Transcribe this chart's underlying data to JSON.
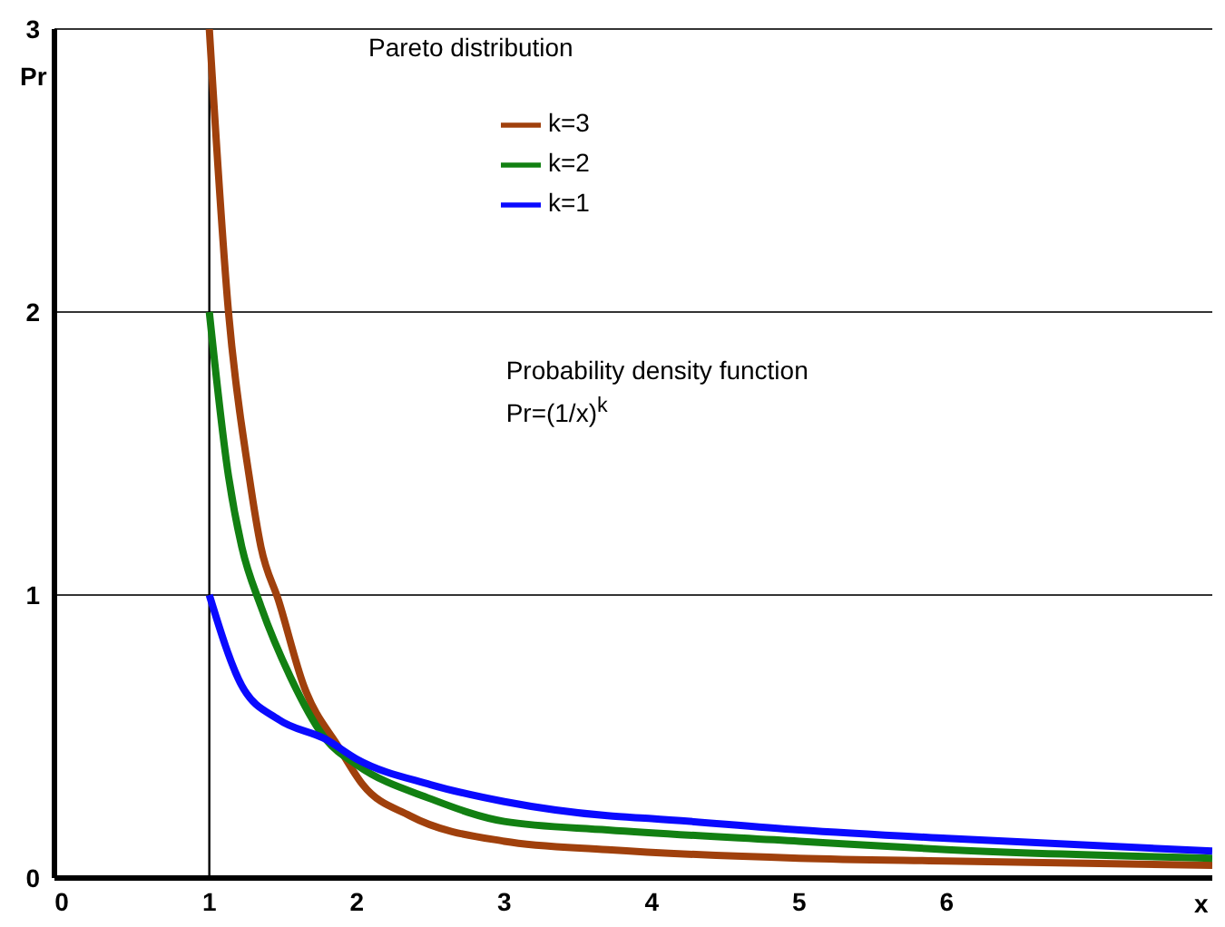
{
  "chart_data": {
    "type": "line",
    "title": "Pareto distribution",
    "xlabel": "x",
    "ylabel": "Pr",
    "annotations": [
      "Probability density function",
      "Pr=(1/x)$^{k}$"
    ],
    "xlim": [
      -0.05,
      7.8
    ],
    "xticks": [
      0,
      1,
      2,
      3,
      4,
      5,
      6
    ],
    "ylim": [
      0,
      3
    ],
    "yticks": [
      0,
      1,
      2,
      3
    ],
    "grid": "y",
    "legend": "top",
    "marker": "none",
    "line_style": "solid",
    "ref_lines": [
      {
        "axis": "x",
        "value": 1,
        "color": "#000000"
      }
    ],
    "series": [
      {
        "name": "k=3",
        "color": "#a0400c",
        "x": [
          1,
          1.13,
          1.27,
          1.35,
          1.47,
          1.64,
          1.88,
          2.04,
          2.36,
          3,
          3.7,
          5,
          6,
          7.8
        ],
        "values": [
          3,
          2,
          1.42,
          1.17,
          0.98,
          0.68,
          0.46,
          0.33,
          0.22,
          0.13,
          0.1,
          0.07,
          0.06,
          0.045
        ]
      },
      {
        "name": "k=2",
        "color": "#128012",
        "x": [
          1,
          1.13,
          1.22,
          1.35,
          1.55,
          1.79,
          2,
          2.5,
          3,
          3.7,
          5,
          6,
          7.8
        ],
        "values": [
          2,
          1.42,
          1.17,
          0.96,
          0.71,
          0.49,
          0.4,
          0.28,
          0.2,
          0.17,
          0.13,
          0.1,
          0.07
        ]
      },
      {
        "name": "k=1",
        "color": "#0a0aff",
        "x": [
          1,
          1.22,
          1.47,
          1.79,
          2,
          2.5,
          3,
          3.7,
          4,
          5,
          6,
          7.8
        ],
        "values": [
          1,
          0.68,
          0.56,
          0.49,
          0.42,
          0.33,
          0.27,
          0.22,
          0.21,
          0.17,
          0.14,
          0.095
        ]
      }
    ]
  }
}
